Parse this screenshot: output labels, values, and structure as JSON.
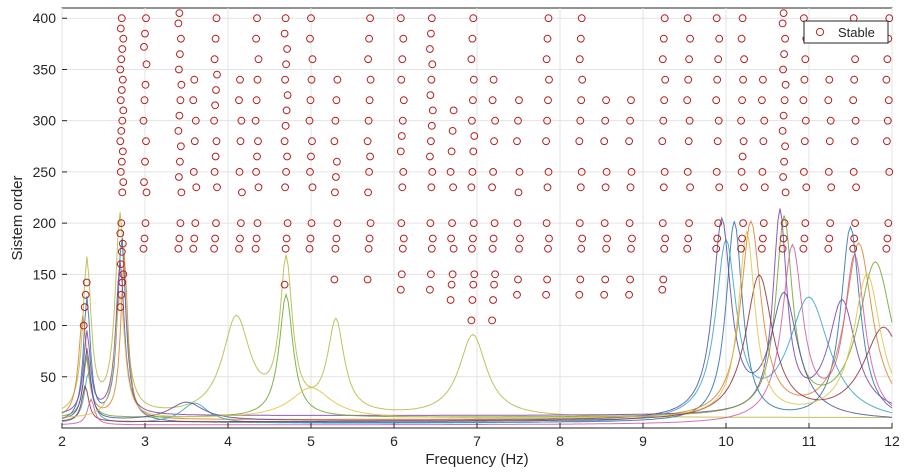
{
  "chart_data": {
    "type": "scatter",
    "xlabel": "Frequency (Hz)",
    "ylabel": "Sistem order",
    "xlim": [
      2,
      12
    ],
    "ylim": [
      0,
      410
    ],
    "xticks": [
      2,
      3,
      4,
      5,
      6,
      7,
      8,
      9,
      10,
      11,
      12
    ],
    "yticks": [
      50,
      100,
      150,
      200,
      250,
      300,
      350,
      400
    ],
    "grid": true,
    "legend_position": "top-right",
    "marker_color": "#b22222",
    "series": [
      {
        "name": "Stable",
        "marker": "circle",
        "columns": [
          {
            "f": 2.28,
            "orders": [
              100,
              118,
              130,
              142
            ]
          },
          {
            "f": 2.72,
            "orders": [
              118,
              130,
              142,
              150,
              160,
              172,
              180,
              190,
              200,
              230,
              240,
              250,
              260,
              270,
              280,
              290,
              300,
              310,
              320,
              330,
              340,
              350,
              360,
              370,
              380,
              390,
              400
            ]
          },
          {
            "f": 3.0,
            "orders": [
              175,
              185,
              200,
              230,
              240,
              260,
              280,
              300,
              320,
              335,
              355,
              372,
              385,
              400
            ]
          },
          {
            "f": 3.42,
            "orders": [
              175,
              185,
              200,
              230,
              245,
              260,
              275,
              290,
              305,
              320,
              335,
              350,
              365,
              380,
              395,
              405
            ]
          },
          {
            "f": 3.6,
            "orders": [
              175,
              185,
              200,
              235,
              250,
              280,
              300,
              320,
              340
            ]
          },
          {
            "f": 3.85,
            "orders": [
              175,
              185,
              200,
              235,
              250,
              265,
              280,
              300,
              315,
              330,
              345,
              360,
              380,
              400
            ]
          },
          {
            "f": 4.15,
            "orders": [
              175,
              185,
              200,
              230,
              250,
              280,
              300,
              320,
              340
            ]
          },
          {
            "f": 4.35,
            "orders": [
              175,
              185,
              200,
              235,
              250,
              265,
              280,
              300,
              320,
              340,
              360,
              380,
              400
            ]
          },
          {
            "f": 4.7,
            "orders": [
              140,
              175,
              185,
              200,
              235,
              250,
              265,
              280,
              295,
              310,
              325,
              340,
              355,
              370,
              385,
              400
            ]
          },
          {
            "f": 5.0,
            "orders": [
              175,
              185,
              200,
              235,
              250,
              265,
              280,
              300,
              320,
              340,
              360,
              380,
              400
            ]
          },
          {
            "f": 5.3,
            "orders": [
              145,
              175,
              185,
              200,
              230,
              245,
              260,
              280,
              300,
              320,
              340
            ]
          },
          {
            "f": 5.7,
            "orders": [
              145,
              175,
              185,
              200,
              230,
              250,
              265,
              280,
              300,
              320,
              340,
              360,
              380,
              400
            ]
          },
          {
            "f": 6.1,
            "orders": [
              135,
              150,
              175,
              185,
              200,
              235,
              250,
              270,
              285,
              300,
              320,
              340,
              360,
              380,
              400
            ]
          },
          {
            "f": 6.45,
            "orders": [
              135,
              150,
              175,
              185,
              200,
              235,
              250,
              265,
              280,
              295,
              310,
              325,
              340,
              355,
              370,
              385,
              400
            ]
          },
          {
            "f": 6.7,
            "orders": [
              125,
              140,
              150,
              175,
              185,
              200,
              235,
              250,
              270,
              290,
              310
            ]
          },
          {
            "f": 6.95,
            "orders": [
              105,
              125,
              140,
              150,
              175,
              185,
              200,
              235,
              250,
              270,
              285,
              300,
              320,
              340,
              360,
              380,
              400
            ]
          },
          {
            "f": 7.2,
            "orders": [
              105,
              125,
              140,
              150,
              175,
              185,
              200,
              235,
              250,
              280,
              300,
              320,
              340
            ]
          },
          {
            "f": 7.5,
            "orders": [
              130,
              145,
              175,
              185,
              200,
              230,
              250,
              280,
              300,
              320
            ]
          },
          {
            "f": 7.85,
            "orders": [
              130,
              145,
              175,
              185,
              200,
              235,
              250,
              280,
              300,
              320,
              340,
              360,
              380,
              400
            ]
          },
          {
            "f": 8.25,
            "orders": [
              130,
              145,
              175,
              185,
              200,
              235,
              250,
              280,
              300,
              320,
              340,
              360,
              380,
              400
            ]
          },
          {
            "f": 8.55,
            "orders": [
              130,
              145,
              175,
              185,
              200,
              235,
              250,
              280,
              300,
              320
            ]
          },
          {
            "f": 8.85,
            "orders": [
              130,
              145,
              175,
              185,
              200,
              235,
              250,
              280,
              300,
              320
            ]
          },
          {
            "f": 9.25,
            "orders": [
              135,
              145,
              175,
              185,
              200,
              235,
              250,
              280,
              300,
              320,
              340,
              360,
              380,
              400
            ]
          },
          {
            "f": 9.55,
            "orders": [
              175,
              185,
              200,
              235,
              250,
              280,
              300,
              320,
              340,
              360,
              380,
              400
            ]
          },
          {
            "f": 9.9,
            "orders": [
              175,
              185,
              200,
              235,
              250,
              280,
              300,
              320,
              340,
              360,
              380,
              400
            ]
          },
          {
            "f": 10.2,
            "orders": [
              175,
              185,
              200,
              235,
              250,
              265,
              280,
              300,
              320,
              340,
              360,
              380,
              400
            ]
          },
          {
            "f": 10.45,
            "orders": [
              175,
              185,
              200,
              235,
              250,
              280,
              300,
              320,
              340
            ]
          },
          {
            "f": 10.7,
            "orders": [
              175,
              185,
              200,
              230,
              245,
              260,
              275,
              290,
              305,
              320,
              335,
              350,
              365,
              380,
              395,
              405
            ]
          },
          {
            "f": 10.95,
            "orders": [
              175,
              185,
              200,
              235,
              250,
              280,
              300,
              320,
              340,
              360,
              380,
              400
            ]
          },
          {
            "f": 11.25,
            "orders": [
              175,
              185,
              200,
              235,
              250,
              280,
              300,
              320,
              340
            ]
          },
          {
            "f": 11.55,
            "orders": [
              175,
              185,
              200,
              235,
              250,
              280,
              300,
              320,
              340,
              360,
              380,
              400
            ]
          },
          {
            "f": 11.95,
            "orders": [
              175,
              185,
              200,
              250,
              280,
              300,
              320,
              340,
              360,
              380,
              400
            ]
          }
        ]
      }
    ],
    "background_curves": [
      {
        "color": "#b5b840",
        "peaks": [
          [
            2.3,
            150,
            0.06
          ],
          [
            2.7,
            195,
            0.07
          ],
          [
            4.1,
            95,
            0.2
          ],
          [
            4.7,
            145,
            0.09
          ],
          [
            5.3,
            90,
            0.12
          ],
          [
            6.95,
            80,
            0.2
          ]
        ],
        "base": 10
      },
      {
        "color": "#2b6fae",
        "peaks": [
          [
            2.3,
            120,
            0.05
          ],
          [
            2.72,
            180,
            0.06
          ],
          [
            10.1,
            195,
            0.12
          ],
          [
            11.5,
            190,
            0.14
          ]
        ],
        "base": 5
      },
      {
        "color": "#d9802e",
        "peaks": [
          [
            2.25,
            100,
            0.06
          ],
          [
            2.75,
            160,
            0.05
          ],
          [
            10.3,
            190,
            0.15
          ],
          [
            11.6,
            170,
            0.2
          ]
        ],
        "base": 8
      },
      {
        "color": "#7a3fa6",
        "peaks": [
          [
            2.3,
            80,
            0.05
          ],
          [
            2.7,
            150,
            0.06
          ],
          [
            10.65,
            195,
            0.1
          ],
          [
            11.4,
            110,
            0.2
          ]
        ],
        "base": 12
      },
      {
        "color": "#6aa72e",
        "peaks": [
          [
            2.3,
            60,
            0.05
          ],
          [
            4.7,
            120,
            0.1
          ],
          [
            10.7,
            190,
            0.12
          ],
          [
            11.8,
            150,
            0.25
          ]
        ],
        "base": 10
      },
      {
        "color": "#31a3c9",
        "peaks": [
          [
            2.32,
            50,
            0.06
          ],
          [
            3.6,
            20,
            0.2
          ],
          [
            10.0,
            170,
            0.15
          ],
          [
            11.0,
            120,
            0.3
          ]
        ],
        "base": 4
      },
      {
        "color": "#8b2f3a",
        "peaks": [
          [
            2.28,
            35,
            0.05
          ],
          [
            10.4,
            140,
            0.2
          ],
          [
            11.9,
            90,
            0.3
          ]
        ],
        "base": 6
      },
      {
        "color": "#cc5a9c",
        "peaks": [
          [
            2.35,
            25,
            0.05
          ],
          [
            10.8,
            170,
            0.15
          ],
          [
            11.55,
            160,
            0.15
          ]
        ],
        "base": 3
      },
      {
        "color": "#4f4f9c",
        "peaks": [
          [
            2.3,
            70,
            0.05
          ],
          [
            3.5,
            18,
            0.25
          ],
          [
            9.95,
            190,
            0.13
          ],
          [
            10.7,
            120,
            0.2
          ]
        ],
        "base": 7
      },
      {
        "color": "#ddc346",
        "peaks": [
          [
            2.7,
            120,
            0.07
          ],
          [
            5.0,
            30,
            0.3
          ],
          [
            10.25,
            180,
            0.12
          ],
          [
            11.7,
            140,
            0.2
          ]
        ],
        "base": 9
      }
    ]
  }
}
